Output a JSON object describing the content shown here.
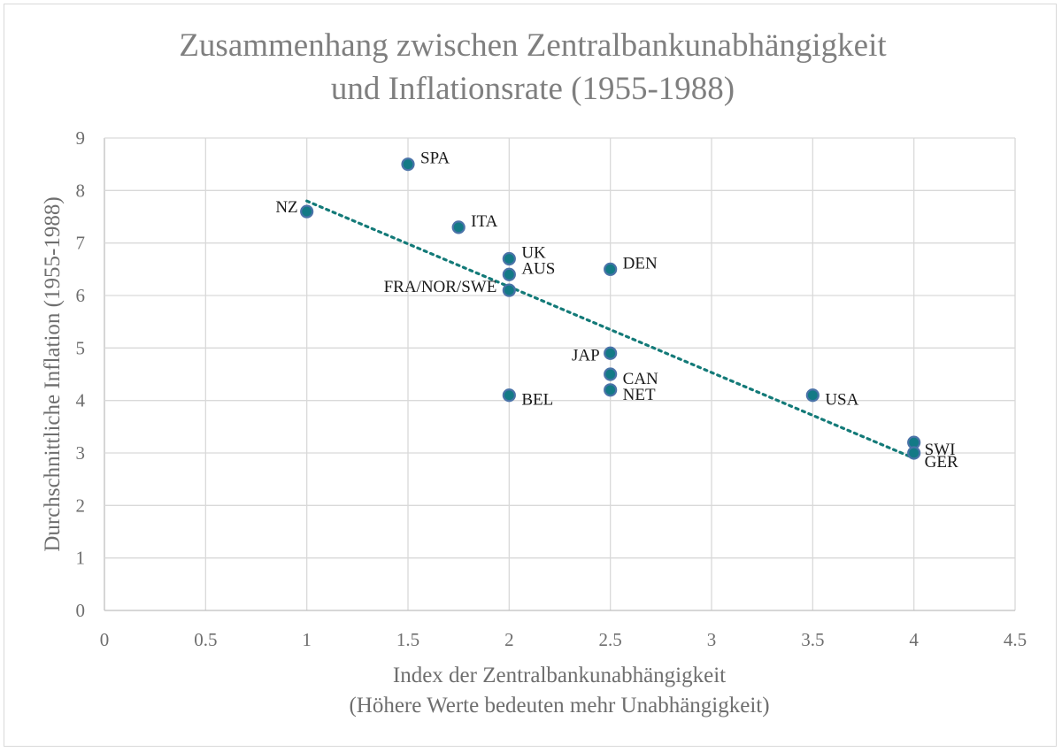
{
  "chart_data": {
    "type": "scatter",
    "title_lines": [
      "Zusammenhang zwischen Zentralbankunabhängigkeit",
      "und Inflationsrate (1955-1988)"
    ],
    "xlabel_lines": [
      "Index der Zentralbankunabhängigkeit",
      "(Höhere Werte bedeuten mehr Unabhängigkeit)"
    ],
    "ylabel": "Durchschnittliche Inflation (1955-1988)",
    "xlim": [
      0,
      4.5
    ],
    "ylim": [
      0,
      9
    ],
    "x_ticks": [
      "0",
      "0.5",
      "1",
      "1.5",
      "2",
      "2.5",
      "3",
      "3.5",
      "4",
      "4.5"
    ],
    "y_ticks": [
      "0",
      "1",
      "2",
      "3",
      "4",
      "5",
      "6",
      "7",
      "8",
      "9"
    ],
    "grid": true,
    "legend": "none",
    "points": [
      {
        "label": "NZ",
        "x": 1,
        "y": 7.6,
        "label_side": "left"
      },
      {
        "label": "SPA",
        "x": 1.5,
        "y": 8.5,
        "label_side": "right"
      },
      {
        "label": "ITA",
        "x": 1.75,
        "y": 7.3,
        "label_side": "right"
      },
      {
        "label": "UK",
        "x": 2,
        "y": 6.7,
        "label_side": "right"
      },
      {
        "label": "AUS",
        "x": 2,
        "y": 6.4,
        "label_side": "right"
      },
      {
        "label": "FRA/NOR/SWE",
        "x": 2,
        "y": 6.1,
        "label_side": "left"
      },
      {
        "label": "BEL",
        "x": 2,
        "y": 4.1,
        "label_side": "right"
      },
      {
        "label": "DEN",
        "x": 2.5,
        "y": 6.5,
        "label_side": "right"
      },
      {
        "label": "JAP",
        "x": 2.5,
        "y": 4.9,
        "label_side": "left"
      },
      {
        "label": "CAN",
        "x": 2.5,
        "y": 4.5,
        "label_side": "right"
      },
      {
        "label": "NET",
        "x": 2.5,
        "y": 4.2,
        "label_side": "right"
      },
      {
        "label": "USA",
        "x": 3.5,
        "y": 4.1,
        "label_side": "right"
      },
      {
        "label": "SWI",
        "x": 4,
        "y": 3.2,
        "label_side": "right"
      },
      {
        "label": "GER",
        "x": 4,
        "y": 3.0,
        "label_side": "right"
      }
    ],
    "trendline": {
      "type": "linear",
      "style": "dotted",
      "x_start": 1,
      "y_start": 7.8,
      "x_end": 4,
      "y_end": 2.9
    },
    "colors": {
      "marker_fill": "#137a86",
      "marker_border": "#4a73a8",
      "trendline": "#137a78",
      "title": "#7f7f7f",
      "axis_text": "#6e6e6e",
      "gridlines": "#d9d9d9",
      "point_label": "#1a1a1a"
    }
  }
}
